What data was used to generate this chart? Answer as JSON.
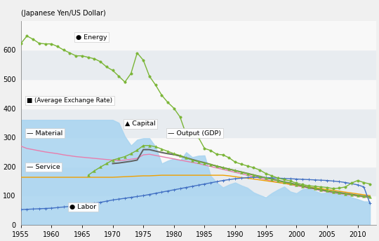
{
  "years": [
    1955,
    1956,
    1957,
    1958,
    1959,
    1960,
    1961,
    1962,
    1963,
    1964,
    1965,
    1966,
    1967,
    1968,
    1969,
    1970,
    1971,
    1972,
    1973,
    1974,
    1975,
    1976,
    1977,
    1978,
    1979,
    1980,
    1981,
    1982,
    1983,
    1984,
    1985,
    1986,
    1987,
    1988,
    1989,
    1990,
    1991,
    1992,
    1993,
    1994,
    1995,
    1996,
    1997,
    1998,
    1999,
    2000,
    2001,
    2002,
    2003,
    2004,
    2005,
    2006,
    2007,
    2008,
    2009,
    2010,
    2011,
    2012
  ],
  "energy": [
    622,
    648,
    637,
    623,
    621,
    621,
    612,
    600,
    590,
    580,
    580,
    575,
    570,
    560,
    542,
    530,
    510,
    490,
    520,
    590,
    565,
    510,
    480,
    445,
    420,
    400,
    370,
    310,
    305,
    300,
    262,
    255,
    242,
    240,
    230,
    215,
    208,
    202,
    196,
    188,
    176,
    168,
    160,
    155,
    150,
    143,
    138,
    134,
    132,
    130,
    128,
    124,
    126,
    130,
    143,
    152,
    145,
    140
  ],
  "capital": [
    null,
    null,
    null,
    null,
    null,
    null,
    null,
    null,
    null,
    null,
    null,
    170,
    185,
    198,
    210,
    222,
    228,
    234,
    244,
    256,
    272,
    272,
    268,
    260,
    252,
    244,
    238,
    230,
    222,
    217,
    212,
    207,
    202,
    196,
    191,
    186,
    181,
    176,
    171,
    166,
    161,
    156,
    151,
    146,
    142,
    137,
    133,
    129,
    125,
    121,
    117,
    113,
    109,
    106,
    103,
    100,
    97,
    95
  ],
  "output_gdp": [
    null,
    null,
    null,
    null,
    null,
    null,
    null,
    null,
    null,
    null,
    null,
    null,
    null,
    null,
    null,
    210,
    212,
    215,
    218,
    222,
    258,
    258,
    253,
    248,
    244,
    241,
    236,
    230,
    224,
    218,
    213,
    207,
    201,
    196,
    191,
    186,
    181,
    176,
    171,
    166,
    161,
    157,
    152,
    147,
    143,
    138,
    133,
    128,
    124,
    120,
    116,
    113,
    110,
    107,
    104,
    101,
    98,
    96
  ],
  "material": [
    270,
    262,
    258,
    254,
    250,
    247,
    244,
    240,
    237,
    234,
    232,
    230,
    228,
    226,
    224,
    222,
    220,
    222,
    225,
    228,
    240,
    242,
    238,
    234,
    230,
    226,
    222,
    218,
    214,
    210,
    205,
    200,
    195,
    190,
    185,
    180,
    175,
    170,
    165,
    160,
    155,
    150,
    146,
    142,
    138,
    134,
    130,
    126,
    122,
    118,
    114,
    110,
    107,
    104,
    101,
    98,
    95,
    93
  ],
  "service": [
    163,
    163,
    163,
    163,
    163,
    163,
    163,
    163,
    163,
    163,
    163,
    163,
    163,
    163,
    163,
    163,
    164,
    165,
    166,
    167,
    168,
    168,
    169,
    170,
    170,
    170,
    170,
    170,
    170,
    170,
    170,
    170,
    170,
    170,
    168,
    165,
    162,
    160,
    157,
    154,
    151,
    148,
    145,
    142,
    139,
    136,
    133,
    130,
    127,
    124,
    121,
    118,
    115,
    112,
    109,
    106,
    103,
    100
  ],
  "labor": [
    52,
    53,
    54,
    55,
    56,
    57,
    59,
    61,
    63,
    65,
    68,
    71,
    74,
    77,
    81,
    85,
    88,
    91,
    94,
    97,
    100,
    104,
    108,
    112,
    116,
    120,
    124,
    128,
    132,
    136,
    140,
    144,
    148,
    152,
    155,
    158,
    160,
    162,
    163,
    163,
    162,
    161,
    160,
    159,
    158,
    157,
    156,
    155,
    154,
    153,
    152,
    150,
    148,
    145,
    141,
    137,
    130,
    73
  ],
  "exchange_rate": [
    360,
    360,
    360,
    360,
    360,
    360,
    360,
    360,
    360,
    360,
    360,
    360,
    360,
    360,
    360,
    360,
    350,
    303,
    272,
    292,
    297,
    297,
    268,
    210,
    220,
    227,
    220,
    249,
    232,
    237,
    238,
    168,
    145,
    128,
    138,
    145,
    135,
    127,
    111,
    102,
    94,
    109,
    121,
    131,
    114,
    108,
    122,
    125,
    116,
    108,
    110,
    116,
    117,
    104,
    94,
    88,
    80,
    80
  ],
  "ylabel": "(Japanese Yen/US Dollar)",
  "ylim": [
    0,
    700
  ],
  "xlim": [
    1955,
    2013
  ],
  "yticks": [
    0,
    100,
    200,
    300,
    400,
    500,
    600
  ],
  "xticks": [
    1955,
    1960,
    1965,
    1970,
    1975,
    1980,
    1985,
    1990,
    1995,
    2000,
    2005,
    2010
  ],
  "energy_color": "#7ab536",
  "capital_color": "#7ab536",
  "output_color": "#606060",
  "material_color": "#e87dac",
  "service_color": "#f0a000",
  "labor_color": "#4472c4",
  "exchange_fill_color": "#a8d4f0",
  "band_light": "#e8ecf0",
  "band_white": "#f8f8f8",
  "ann_energy_x": 1964,
  "ann_energy_y": 638,
  "ann_exrate_x": 1956,
  "ann_exrate_y": 420,
  "ann_material_x": 1956,
  "ann_material_y": 308,
  "ann_capital_x": 1972,
  "ann_capital_y": 340,
  "ann_output_x": 1979,
  "ann_output_y": 308,
  "ann_service_x": 1956,
  "ann_service_y": 192,
  "ann_labor_x": 1963,
  "ann_labor_y": 55
}
